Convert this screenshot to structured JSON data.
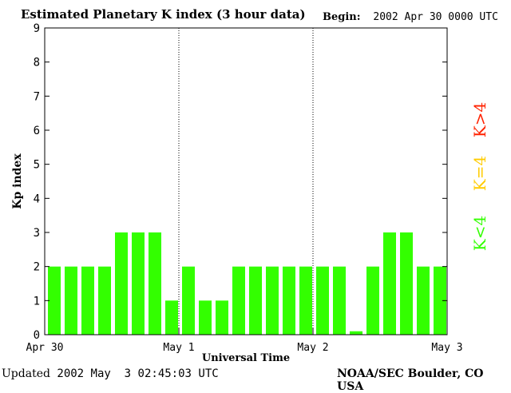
{
  "header": {
    "title": "Estimated Planetary K index (3 hour data)",
    "begin_label": "Begin:",
    "begin_value": "2002 Apr 30 0000 UTC"
  },
  "footer": {
    "updated_label": "Updated",
    "updated_value": "2002 May  3 02:45:03 UTC",
    "credit": "NOAA/SEC Boulder, CO USA"
  },
  "legend": [
    {
      "label": "K>4",
      "color": "#ff2200"
    },
    {
      "label": "K=4",
      "color": "#ffcc00"
    },
    {
      "label": "K<4",
      "color": "#33ff00"
    }
  ],
  "chart_data": {
    "type": "bar",
    "title": "Estimated Planetary K index (3 hour data)",
    "xlabel": "Universal Time",
    "ylabel": "Kp index",
    "ylim": [
      0,
      9
    ],
    "yticks": [
      "0",
      "1",
      "2",
      "3",
      "4",
      "5",
      "6",
      "7",
      "8",
      "9"
    ],
    "xticks": [
      "Apr 30",
      "May 1",
      "May 2",
      "May 3"
    ],
    "day_dividers": [
      "May 1",
      "May 2"
    ],
    "bar_color": "#33ff00",
    "values": [
      2,
      2,
      2,
      2,
      3,
      3,
      3,
      1,
      2,
      1,
      1,
      2,
      2,
      2,
      2,
      2,
      2,
      2,
      0.1,
      2,
      3,
      3,
      2,
      2
    ]
  }
}
